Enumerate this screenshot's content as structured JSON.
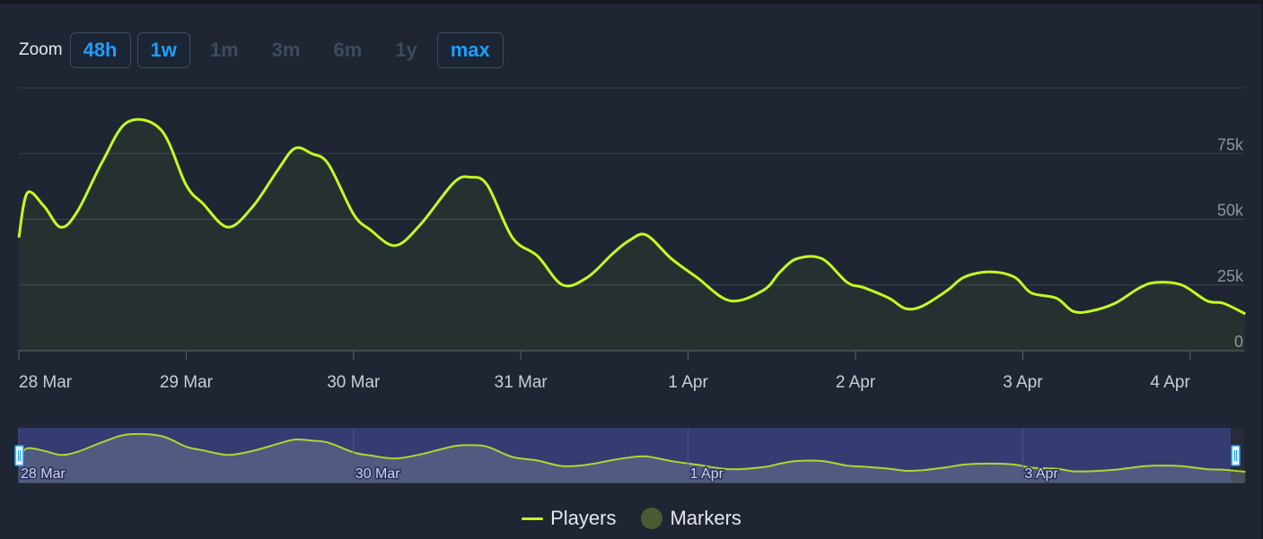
{
  "zoom": {
    "label": "Zoom",
    "buttons": [
      {
        "label": "48h",
        "active": true
      },
      {
        "label": "1w",
        "active": true
      },
      {
        "label": "1m",
        "active": false
      },
      {
        "label": "3m",
        "active": false
      },
      {
        "label": "6m",
        "active": false
      },
      {
        "label": "1y",
        "active": false
      },
      {
        "label": "max",
        "active": true
      }
    ]
  },
  "legend": {
    "players_label": "Players",
    "markers_label": "Markers"
  },
  "navigator": {
    "tick_labels": [
      "28 Mar",
      "30 Mar",
      "1 Apr",
      "3 Apr"
    ]
  },
  "colors": {
    "series": "#c4fb1f",
    "accent": "#1a9fff",
    "navigator_band": "#353d75"
  },
  "chart_data": {
    "type": "line",
    "xlabel": "",
    "ylabel": "",
    "ylim": [
      0,
      100000
    ],
    "yticks": [
      0,
      25000,
      50000,
      75000
    ],
    "ytick_labels": [
      "0",
      "25k",
      "50k",
      "75k"
    ],
    "xtick_labels": [
      "28 Mar",
      "29 Mar",
      "30 Mar",
      "31 Mar",
      "1 Apr",
      "2 Apr",
      "3 Apr",
      "4 Apr"
    ],
    "grid": true,
    "legend_position": "bottom-center",
    "series": [
      {
        "name": "Players",
        "x_days": [
          0,
          0.05,
          0.15,
          0.25,
          0.35,
          0.5,
          0.65,
          0.85,
          1.0,
          1.1,
          1.25,
          1.4,
          1.55,
          1.65,
          1.75,
          1.85,
          2.0,
          2.1,
          2.25,
          2.4,
          2.6,
          2.7,
          2.8,
          2.95,
          3.1,
          3.25,
          3.4,
          3.55,
          3.65,
          3.75,
          3.9,
          4.05,
          4.25,
          4.45,
          4.55,
          4.65,
          4.8,
          4.95,
          5.05,
          5.2,
          5.3,
          5.4,
          5.55,
          5.65,
          5.8,
          5.95,
          6.05,
          6.2,
          6.3,
          6.4,
          6.55,
          6.7,
          6.8,
          6.95,
          7.1,
          7.2,
          7.33
        ],
        "values": [
          43000,
          60000,
          55000,
          47000,
          53000,
          72000,
          87000,
          84000,
          63000,
          56000,
          47000,
          55000,
          69000,
          77000,
          75000,
          71000,
          52000,
          46000,
          40000,
          48000,
          64000,
          66000,
          63000,
          43000,
          36000,
          25000,
          28000,
          37000,
          42000,
          44000,
          35000,
          28000,
          19000,
          23000,
          30000,
          35000,
          35000,
          26000,
          24000,
          20000,
          16000,
          17000,
          23000,
          28000,
          30000,
          28000,
          22000,
          20000,
          15000,
          15000,
          18000,
          24000,
          26000,
          25000,
          19000,
          18000,
          14000
        ]
      }
    ],
    "markers": []
  }
}
